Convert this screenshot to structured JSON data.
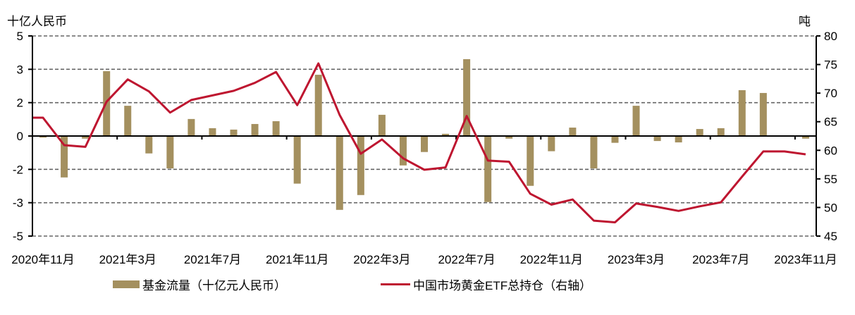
{
  "chart_data": {
    "type": "bar+line",
    "title": "",
    "categories": [
      "2020年11月",
      "2020年12月",
      "2021年1月",
      "2021年2月",
      "2021年3月",
      "2021年4月",
      "2021年5月",
      "2021年6月",
      "2021年7月",
      "2021年8月",
      "2021年9月",
      "2021年10月",
      "2021年11月",
      "2021年12月",
      "2022年1月",
      "2022年2月",
      "2022年3月",
      "2022年4月",
      "2022年5月",
      "2022年6月",
      "2022年7月",
      "2022年8月",
      "2022年9月",
      "2022年10月",
      "2022年11月",
      "2022年12月",
      "2023年1月",
      "2023年2月",
      "2023年3月",
      "2023年4月",
      "2023年5月",
      "2023年6月",
      "2023年7月",
      "2023年8月",
      "2023年9月",
      "2023年10月",
      "2023年11月"
    ],
    "x_tick_labels": [
      "2020年11月",
      "2021年3月",
      "2021年7月",
      "2021年11月",
      "2022年3月",
      "2022年7月",
      "2022年11月",
      "2023年3月",
      "2023年7月",
      "2023年11月"
    ],
    "x_label_every": 4,
    "ylabel": "十亿人民币",
    "y2label": "吨",
    "ylim": [
      -5,
      5
    ],
    "y_tick_values": [
      5,
      3.333,
      1.667,
      0,
      -1.667,
      -3.333,
      -5
    ],
    "y_tick_labels": [
      "5",
      "3",
      "2",
      "0",
      "-2",
      "-3",
      "-5"
    ],
    "y2lim": [
      45,
      80
    ],
    "y2_tick_labels": [
      "80",
      "75",
      "70",
      "65",
      "60",
      "55",
      "50",
      "45"
    ],
    "grid": true,
    "legend_position": "bottom",
    "series": [
      {
        "name": "基金流量（十亿元人民币）",
        "type": "bar",
        "axis": "left",
        "color": "#A4905F",
        "values": [
          -0.08,
          -2.07,
          -0.13,
          3.24,
          1.51,
          -0.87,
          -1.62,
          0.85,
          0.39,
          0.32,
          0.6,
          0.74,
          -2.38,
          3.06,
          -3.69,
          -2.95,
          1.06,
          -1.47,
          -0.8,
          0.11,
          3.84,
          -3.3,
          -0.13,
          -2.49,
          -0.76,
          0.42,
          -1.62,
          -0.34,
          1.51,
          -0.25,
          -0.32,
          0.35,
          0.39,
          2.29,
          2.15,
          0,
          -0.13
        ]
      },
      {
        "name": "中国市场黄金ETF总持仓（右轴）",
        "type": "line",
        "axis": "right",
        "color": "#BE1630",
        "values": [
          65.7,
          60.9,
          60.6,
          68.5,
          72.4,
          70.3,
          66.6,
          68.8,
          69.6,
          70.4,
          71.8,
          73.7,
          67.9,
          75.2,
          66.2,
          59.4,
          61.9,
          58.6,
          56.6,
          57.0,
          66.0,
          58.2,
          58.0,
          52.4,
          50.5,
          51.4,
          47.7,
          47.4,
          50.7,
          50.1,
          49.4,
          50.2,
          50.9,
          55.4,
          59.8,
          59.8,
          59.3
        ]
      }
    ]
  },
  "axes": {
    "left_unit": "十亿人民币",
    "right_unit": "吨"
  },
  "legend": {
    "bar_label": "基金流量（十亿元人民币）",
    "line_label": "中国市场黄金ETF总持仓（右轴）"
  }
}
